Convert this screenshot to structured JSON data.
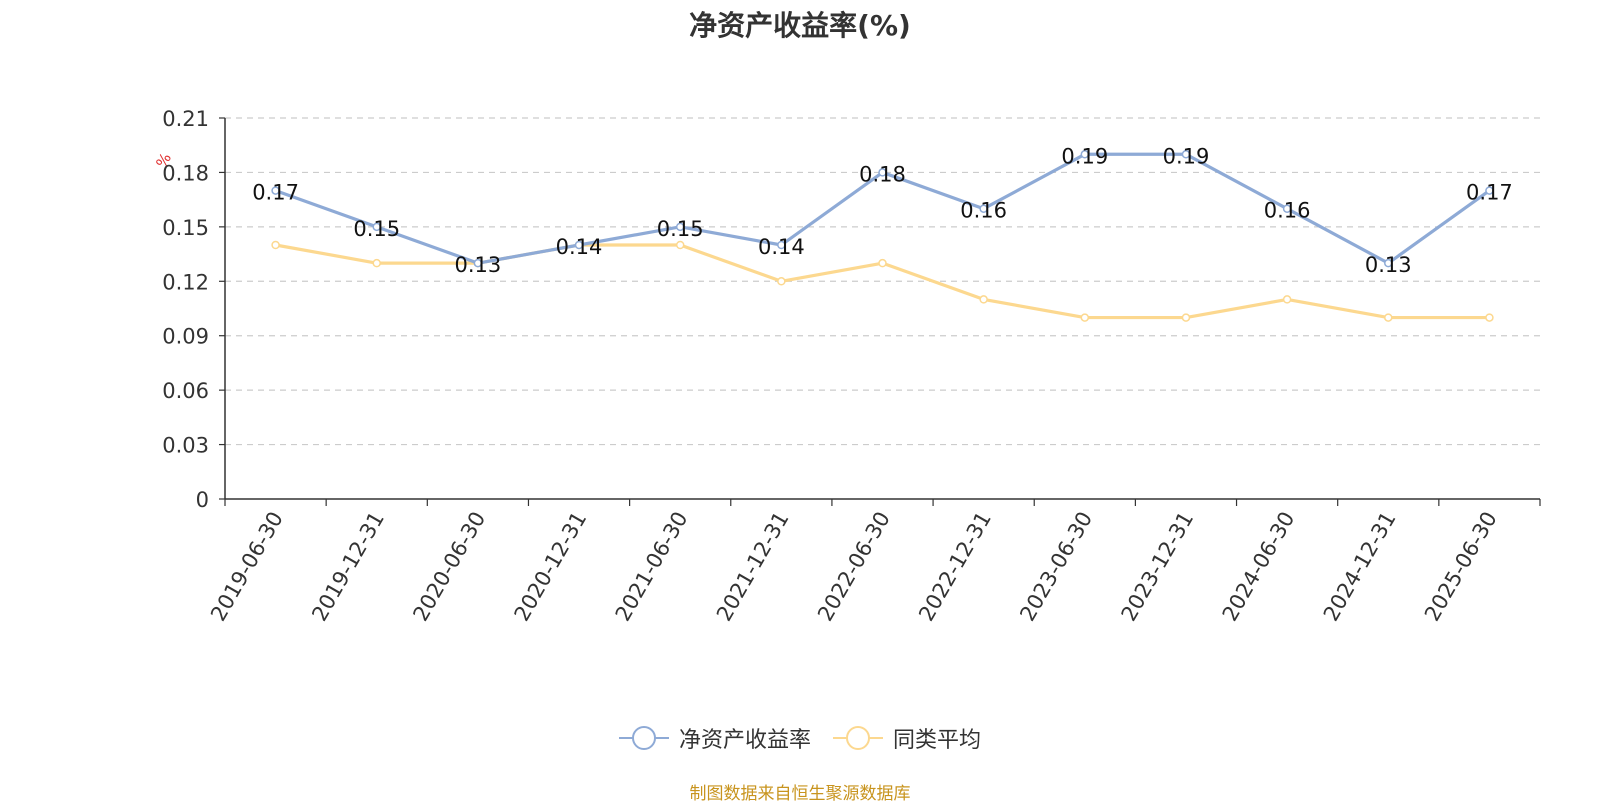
{
  "title": "净资产收益率(%)",
  "source_note": "制图数据来自恒生聚源数据库",
  "colors": {
    "roe": "#8eaad6",
    "avg": "#fcd88f",
    "unit": "#e03030",
    "grid": "#cccccc",
    "axis": "#333333"
  },
  "chart_data": {
    "type": "line",
    "title": "净资产收益率(%)",
    "ylabel": "%",
    "ylim": [
      0,
      0.21
    ],
    "yticks": [
      "0",
      "0.03",
      "0.06",
      "0.09",
      "0.12",
      "0.15",
      "0.18",
      "0.21"
    ],
    "grid": true,
    "legend_position": "bottom-center",
    "categories": [
      "2019-06-30",
      "2019-12-31",
      "2020-06-30",
      "2020-12-31",
      "2021-06-30",
      "2021-12-31",
      "2022-06-30",
      "2022-12-31",
      "2023-06-30",
      "2023-12-31",
      "2024-06-30",
      "2024-12-31",
      "2025-06-30"
    ],
    "series": [
      {
        "name": "净资产收益率",
        "values": [
          0.17,
          0.15,
          0.13,
          0.14,
          0.15,
          0.14,
          0.18,
          0.16,
          0.19,
          0.19,
          0.16,
          0.13,
          0.17
        ],
        "labels_shown": true
      },
      {
        "name": "同类平均",
        "values": [
          0.14,
          0.13,
          0.13,
          0.14,
          0.14,
          0.12,
          0.13,
          0.11,
          0.1,
          0.1,
          0.11,
          0.1,
          0.1
        ],
        "labels_shown": false
      }
    ]
  }
}
